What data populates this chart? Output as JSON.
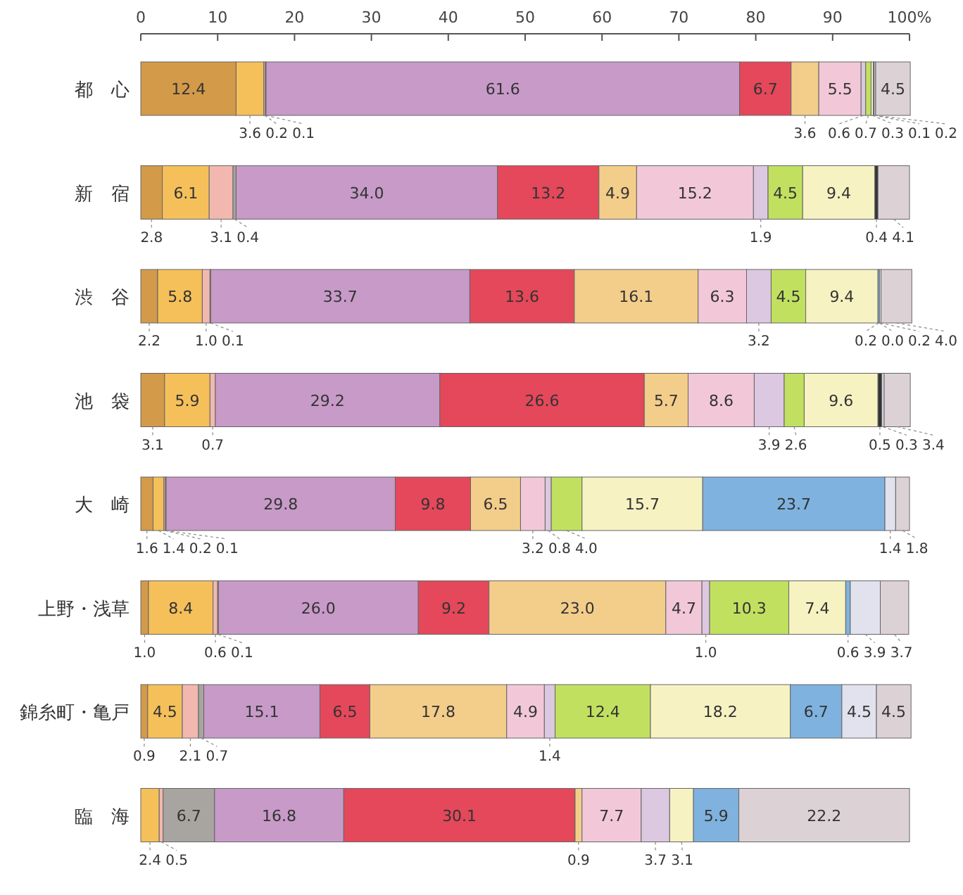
{
  "chart_data": {
    "type": "bar",
    "orientation": "horizontal",
    "stacked": true,
    "categories": [
      "都　心",
      "新　宿",
      "渋　谷",
      "池　袋",
      "大　崎",
      "上野・浅草",
      "錦糸町・亀戸",
      "臨　海"
    ],
    "xlim": [
      0,
      100
    ],
    "xticks": [
      0,
      10,
      20,
      30,
      40,
      50,
      60,
      70,
      80,
      90,
      {
        "value": 100,
        "label": "100%"
      }
    ],
    "series": [
      {
        "color": "#d39a4a",
        "values": [
          12.4,
          2.8,
          2.2,
          3.1,
          1.6,
          1.0,
          0.9,
          null
        ],
        "value_labels": [
          "12.4",
          "2.8",
          "2.2",
          "3.1",
          "1.6",
          "1.0",
          "0.9",
          null
        ]
      },
      {
        "color": "#f5c05a",
        "values": [
          3.6,
          6.1,
          5.8,
          5.9,
          1.4,
          8.4,
          4.5,
          2.4
        ],
        "value_labels": [
          "3.6",
          "6.1",
          "5.8",
          "5.9",
          "1.4",
          "8.4",
          "4.5",
          "2.4"
        ]
      },
      {
        "color": "#f2b8b0",
        "values": [
          0.2,
          3.1,
          1.0,
          0.7,
          0.2,
          0.6,
          2.1,
          0.5
        ],
        "value_labels": [
          "0.2",
          "3.1",
          "1.0",
          "0.7",
          "0.2",
          "0.6",
          "2.1",
          "0.5"
        ]
      },
      {
        "color": "#a8a4a0",
        "values": [
          0.1,
          0.4,
          0.1,
          null,
          0.1,
          0.1,
          0.7,
          6.7
        ],
        "value_labels": [
          "0.1",
          "0.4",
          "0.1",
          null,
          "0.1",
          "0.1",
          "0.7",
          "6.7"
        ]
      },
      {
        "color": "#c79ac8",
        "values": [
          61.6,
          34.0,
          33.7,
          29.2,
          29.8,
          26.0,
          15.1,
          16.8
        ],
        "value_labels": [
          "61.6",
          "34.0",
          "33.7",
          "29.2",
          "29.8",
          "26.0",
          "15.1",
          "16.8"
        ]
      },
      {
        "color": "#e4485a",
        "values": [
          6.7,
          13.2,
          13.6,
          26.6,
          9.8,
          9.2,
          6.5,
          30.1
        ],
        "value_labels": [
          "6.7",
          "13.2",
          "13.6",
          "26.6",
          "9.8",
          "9.2",
          "6.5",
          "30.1"
        ]
      },
      {
        "color": "#f3cd8a",
        "values": [
          3.6,
          4.9,
          16.1,
          5.7,
          6.5,
          23.0,
          17.8,
          0.9
        ],
        "value_labels": [
          "3.6",
          "4.9",
          "16.1",
          "5.7",
          "6.5",
          "23.0",
          "17.8",
          "0.9"
        ]
      },
      {
        "color": "#f2c8d8",
        "values": [
          5.5,
          15.2,
          6.3,
          8.6,
          3.2,
          4.7,
          4.9,
          7.7
        ],
        "value_labels": [
          "5.5",
          "15.2",
          "6.3",
          "8.6",
          "3.2",
          "4.7",
          "4.9",
          "7.7"
        ]
      },
      {
        "color": "#dcc8e0",
        "values": [
          0.6,
          1.9,
          3.2,
          3.9,
          0.8,
          1.0,
          1.4,
          3.7
        ],
        "value_labels": [
          "0.6",
          "1.9",
          "3.2",
          "3.9",
          "0.8",
          "1.0",
          "1.4",
          "3.7"
        ]
      },
      {
        "color": "#c2e060",
        "values": [
          0.7,
          4.5,
          4.5,
          2.6,
          4.0,
          10.3,
          12.4,
          null
        ],
        "value_labels": [
          "0.7",
          "4.5",
          "4.5",
          "2.6",
          "4.0",
          "10.3",
          "12.4",
          null
        ]
      },
      {
        "color": "#f6f2c2",
        "values": [
          0.3,
          9.4,
          9.4,
          9.6,
          15.7,
          7.4,
          18.2,
          3.1
        ],
        "value_labels": [
          "0.3",
          "9.4",
          "9.4",
          "9.6",
          "15.7",
          "7.4",
          "18.2",
          "3.1"
        ]
      },
      {
        "color": "#7fb2de",
        "values": [
          null,
          null,
          0.2,
          null,
          23.7,
          0.6,
          6.7,
          5.9
        ],
        "value_labels": [
          null,
          null,
          "0.2",
          null,
          "23.7",
          "0.6",
          "6.7",
          "5.9"
        ]
      },
      {
        "color": "#333333",
        "values": [
          0.1,
          0.4,
          0.0,
          0.5,
          null,
          null,
          null,
          null
        ],
        "value_labels": [
          "0.1",
          "0.4",
          "0.0",
          "0.5",
          null,
          null,
          null,
          null
        ]
      },
      {
        "color": "#e2e2ee",
        "values": [
          0.2,
          null,
          0.2,
          0.3,
          1.4,
          3.9,
          4.5,
          null
        ],
        "value_labels": [
          "0.2",
          null,
          "0.2",
          "0.3",
          "1.4",
          "3.9",
          "4.5",
          null
        ]
      },
      {
        "color": "#dcd2d6",
        "values": [
          4.5,
          4.1,
          4.0,
          3.4,
          1.8,
          3.7,
          4.5,
          22.2
        ],
        "value_labels": [
          "4.5",
          "4.1",
          "4.0",
          "3.4",
          "1.8",
          "3.7",
          "4.5",
          "22.2"
        ]
      }
    ]
  }
}
